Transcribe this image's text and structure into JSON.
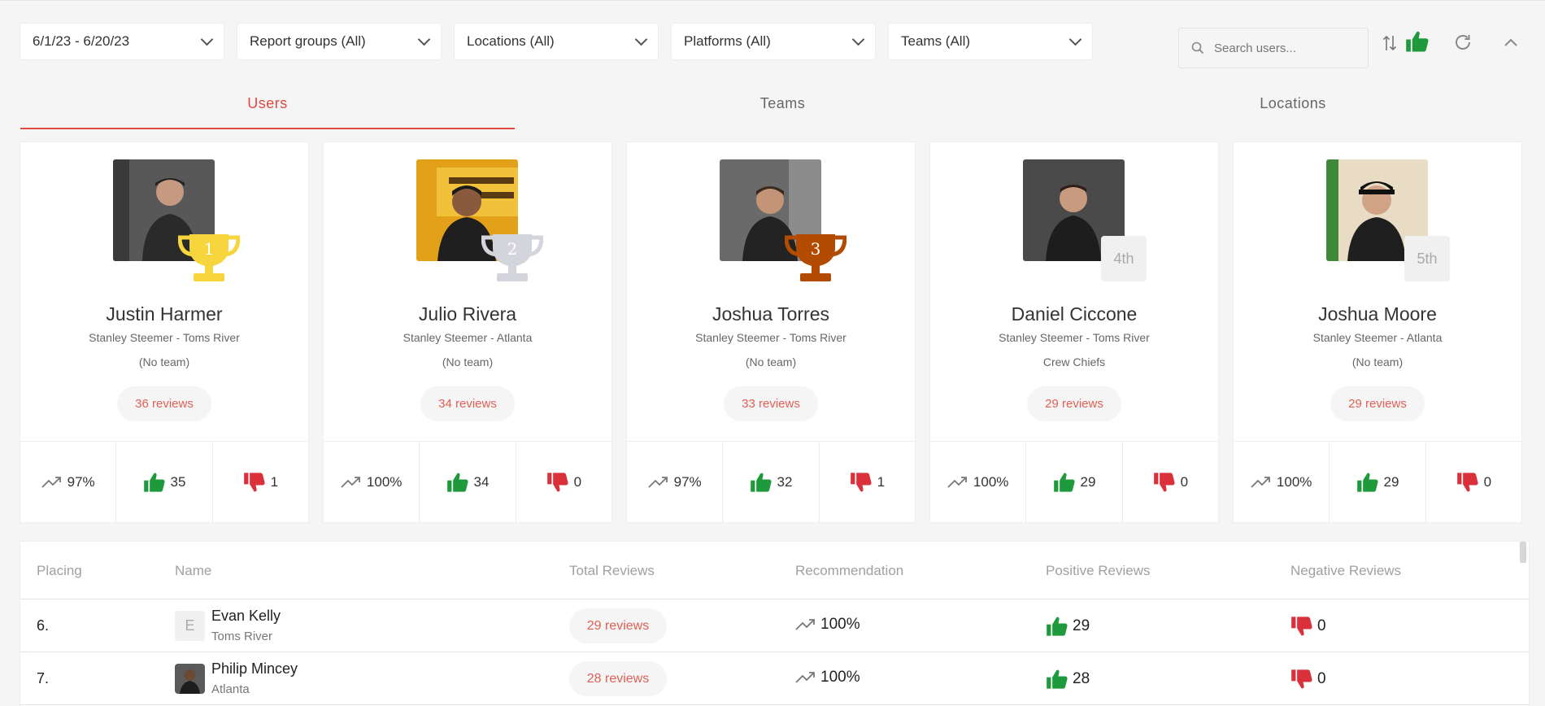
{
  "filters": [
    {
      "label": "6/1/23 - 6/20/23"
    },
    {
      "label": "Report groups (All)"
    },
    {
      "label": "Locations (All)"
    },
    {
      "label": "Platforms (All)"
    },
    {
      "label": "Teams (All)"
    }
  ],
  "search": {
    "placeholder": "Search users..."
  },
  "tabs": [
    {
      "label": "Users",
      "active": true
    },
    {
      "label": "Teams",
      "active": false
    },
    {
      "label": "Locations",
      "active": false
    }
  ],
  "colors": {
    "accent": "#e04a3f",
    "positive": "#1e9a3c",
    "negative": "#d9303b",
    "gold": "#f7d53d",
    "silver": "#d4d4dc",
    "bronze": "#b24a00"
  },
  "top_users": [
    {
      "rank": "1",
      "name": "Justin Harmer",
      "location": "Stanley Steemer - Toms River",
      "team": "(No team)",
      "reviews": "36 reviews",
      "recommendation": "97%",
      "positive": "35",
      "negative": "1"
    },
    {
      "rank": "2",
      "name": "Julio Rivera",
      "location": "Stanley Steemer - Atlanta",
      "team": "(No team)",
      "reviews": "34 reviews",
      "recommendation": "100%",
      "positive": "34",
      "negative": "0"
    },
    {
      "rank": "3",
      "name": "Joshua Torres",
      "location": "Stanley Steemer - Toms River",
      "team": "(No team)",
      "reviews": "33 reviews",
      "recommendation": "97%",
      "positive": "32",
      "negative": "1"
    },
    {
      "rank": "4th",
      "name": "Daniel Ciccone",
      "location": "Stanley Steemer - Toms River",
      "team": "Crew Chiefs",
      "reviews": "29 reviews",
      "recommendation": "100%",
      "positive": "29",
      "negative": "0"
    },
    {
      "rank": "5th",
      "name": "Joshua Moore",
      "location": "Stanley Steemer - Atlanta",
      "team": "(No team)",
      "reviews": "29 reviews",
      "recommendation": "100%",
      "positive": "29",
      "negative": "0"
    }
  ],
  "table": {
    "headers": {
      "placing": "Placing",
      "name": "Name",
      "total": "Total Reviews",
      "recommendation": "Recommendation",
      "positive": "Positive Reviews",
      "negative": "Negative Reviews"
    },
    "rows": [
      {
        "placing": "6.",
        "initial": "E",
        "name": "Evan Kelly",
        "location": "Toms River",
        "reviews": "29 reviews",
        "recommendation": "100%",
        "positive": "29",
        "negative": "0"
      },
      {
        "placing": "7.",
        "initial": "",
        "name": "Philip Mincey",
        "location": "Atlanta",
        "reviews": "28 reviews",
        "recommendation": "100%",
        "positive": "28",
        "negative": "0"
      }
    ]
  }
}
